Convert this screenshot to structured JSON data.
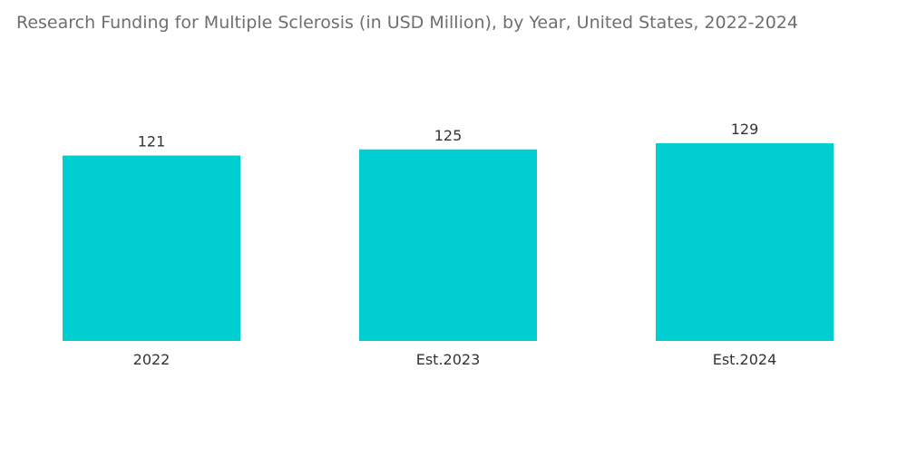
{
  "chart_data": {
    "type": "bar",
    "title": "Research Funding for Multiple Sclerosis (in USD Million), by Year, United States, 2022-2024",
    "categories": [
      "2022",
      "Est.2023",
      "Est.2024"
    ],
    "values": [
      121,
      125,
      129
    ],
    "xlabel": "",
    "ylabel": "",
    "ylim": [
      0,
      129
    ],
    "grid": false,
    "legend": "none",
    "bar_color": "#00ced1"
  }
}
